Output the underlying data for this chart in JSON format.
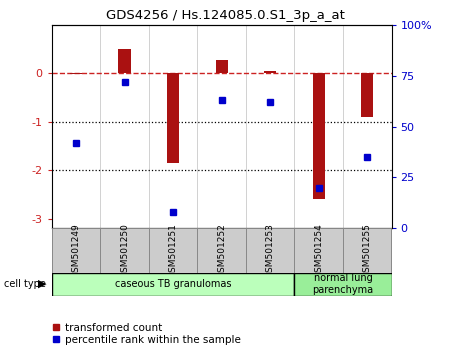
{
  "title": "GDS4256 / Hs.124085.0.S1_3p_a_at",
  "samples": [
    "GSM501249",
    "GSM501250",
    "GSM501251",
    "GSM501252",
    "GSM501253",
    "GSM501254",
    "GSM501255"
  ],
  "transformed_counts": [
    -0.02,
    0.5,
    -1.85,
    0.27,
    0.05,
    -2.6,
    -0.9
  ],
  "percentile_ranks": [
    42,
    72,
    8,
    63,
    62,
    20,
    35
  ],
  "ylim_left": [
    -3.2,
    1.0
  ],
  "ylim_right": [
    0,
    100
  ],
  "left_yticks": [
    -3,
    -2,
    -1,
    0
  ],
  "right_yticks": [
    0,
    25,
    50,
    75,
    100
  ],
  "right_yticklabels": [
    "0",
    "25",
    "50",
    "75",
    "100%"
  ],
  "groups": [
    {
      "label": "caseous TB granulomas",
      "start": 0,
      "end": 5,
      "color": "#bbffbb"
    },
    {
      "label": "normal lung\nparenchyma",
      "start": 5,
      "end": 7,
      "color": "#99ee99"
    }
  ],
  "bar_color": "#aa1111",
  "dot_color": "#0000cc",
  "dotted_lines": [
    -1,
    -2
  ],
  "legend_items": [
    {
      "label": "transformed count",
      "color": "#aa1111"
    },
    {
      "label": "percentile rank within the sample",
      "color": "#0000cc"
    }
  ],
  "cell_type_label": "cell type",
  "bar_width": 0.25
}
